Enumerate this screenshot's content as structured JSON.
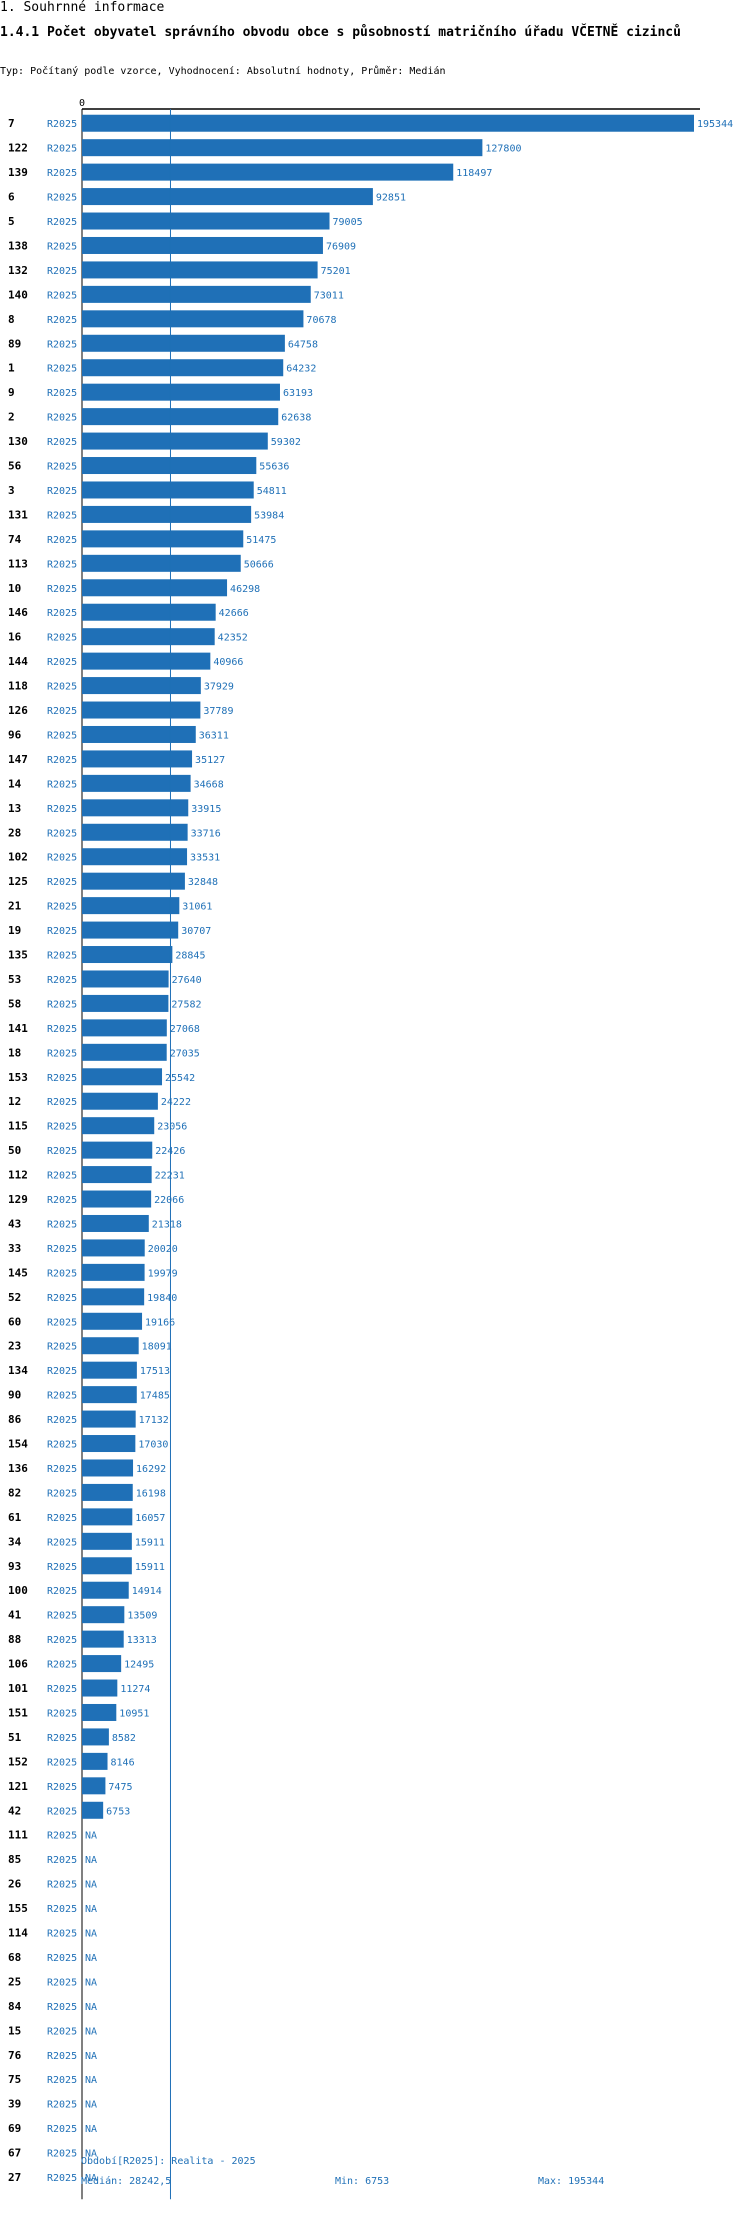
{
  "header": {
    "section": "1. Souhrnné informace",
    "title": "1.4.1 Počet obyvatel správního obvodu obce s působností matričního úřadu VČETNĚ cizinců",
    "subtitle": "Typ: Počítaný podle vzorce, Vyhodnocení: Absolutní hodnoty, Průměr: Medián"
  },
  "colors": {
    "bar": "#1f70b7",
    "text_accent": "#1f70b7",
    "axis": "#000000",
    "median_line": "#1f70b7"
  },
  "chart_data": {
    "type": "bar",
    "orientation": "horizontal",
    "axis_zero_label": "0",
    "xlim": [
      0,
      195344
    ],
    "series_name": "R2025",
    "categories": [
      "7",
      "122",
      "139",
      "6",
      "5",
      "138",
      "132",
      "140",
      "8",
      "89",
      "1",
      "9",
      "2",
      "130",
      "56",
      "3",
      "131",
      "74",
      "113",
      "10",
      "146",
      "16",
      "144",
      "118",
      "126",
      "96",
      "147",
      "14",
      "13",
      "28",
      "102",
      "125",
      "21",
      "19",
      "135",
      "53",
      "58",
      "141",
      "18",
      "153",
      "12",
      "115",
      "50",
      "112",
      "129",
      "43",
      "33",
      "145",
      "52",
      "60",
      "23",
      "134",
      "90",
      "86",
      "154",
      "136",
      "82",
      "61",
      "34",
      "93",
      "100",
      "41",
      "88",
      "106",
      "101",
      "151",
      "51",
      "152",
      "121",
      "42",
      "111",
      "85",
      "26",
      "155",
      "114",
      "68",
      "25",
      "84",
      "15",
      "76",
      "75",
      "39",
      "69",
      "67",
      "27"
    ],
    "values": [
      195344,
      127800,
      118497,
      92851,
      79005,
      76909,
      75201,
      73011,
      70678,
      64758,
      64232,
      63193,
      62638,
      59302,
      55636,
      54811,
      53984,
      51475,
      50666,
      46298,
      42666,
      42352,
      40966,
      37929,
      37789,
      36311,
      35127,
      34668,
      33915,
      33716,
      33531,
      32848,
      31061,
      30707,
      28845,
      27640,
      27582,
      27068,
      27035,
      25542,
      24222,
      23056,
      22426,
      22231,
      22066,
      21318,
      20020,
      19979,
      19840,
      19166,
      18091,
      17513,
      17485,
      17132,
      17030,
      16292,
      16198,
      16057,
      15911,
      15911,
      14914,
      13509,
      13313,
      12495,
      11274,
      10951,
      8582,
      8146,
      7475,
      6753,
      null,
      null,
      null,
      null,
      null,
      null,
      null,
      null,
      null,
      null,
      null,
      null,
      null,
      null,
      null
    ],
    "na_label": "NA",
    "median": 28242.5,
    "min": 6753,
    "max": 195344
  },
  "footer": {
    "period": "Období[R2025]: Realita - 2025",
    "median": "Medián: 28242,5",
    "min": "Min: 6753",
    "max": "Max: 195344"
  }
}
